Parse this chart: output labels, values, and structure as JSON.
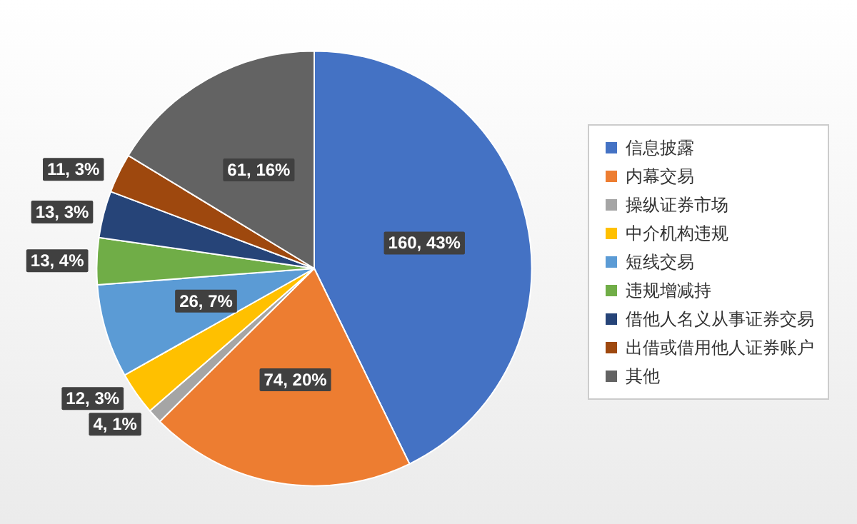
{
  "chart_data": {
    "type": "pie",
    "categories": [
      "信息披露",
      "内幕交易",
      "操纵证券市场",
      "中介机构违规",
      "短线交易",
      "违规增减持",
      "借他人名义从事证券交易",
      "出借或借用他人证券账户",
      "其他"
    ],
    "values": [
      160,
      74,
      4,
      12,
      26,
      13,
      13,
      11,
      61
    ],
    "value_labels": [
      "160, 43%",
      "74, 20%",
      "4, 1%",
      "12, 3%",
      "26, 7%",
      "13, 4%",
      "13, 3%",
      "11, 3%",
      "61, 16%"
    ],
    "colors": [
      "#4472c4",
      "#ed7d31",
      "#a5a5a5",
      "#ffc000",
      "#5b9bd5",
      "#70ad47",
      "#264478",
      "#9e480e",
      "#636363"
    ],
    "legend": "right"
  }
}
